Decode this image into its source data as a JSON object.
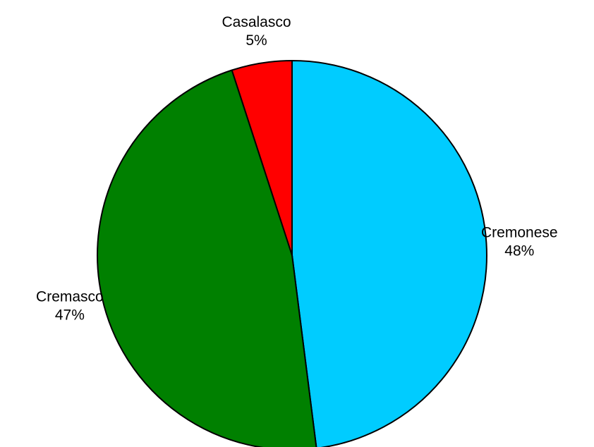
{
  "chart_data": {
    "type": "pie",
    "categories": [
      "Cremonese",
      "Cremasco",
      "Casalasco"
    ],
    "values": [
      48,
      47,
      5
    ],
    "value_labels": [
      "48%",
      "47%",
      "5%"
    ],
    "colors": [
      "#00ccff",
      "#008000",
      "#ff0000"
    ],
    "start": "top",
    "direction": "clockwise",
    "legend": "none"
  }
}
